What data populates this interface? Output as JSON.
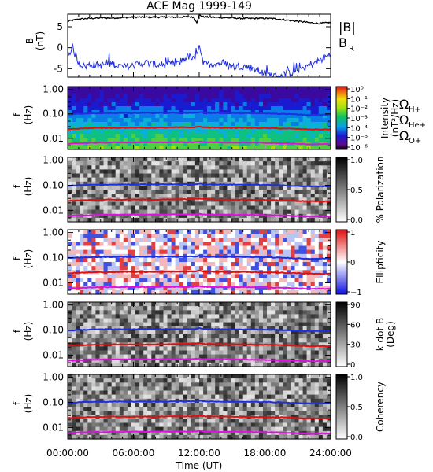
{
  "chart_data": {
    "type": "multi-panel",
    "title": "ACE Mag 1999-149",
    "xlabel": "Time (UT)",
    "x_ticks": [
      "00:00:00",
      "06:00:00",
      "12:00:00",
      "18:00:00",
      "24:00:00"
    ],
    "x_range_hours": [
      0,
      24
    ],
    "panels": [
      {
        "name": "magnetic-field",
        "ylabel": "B",
        "yunit": "(nT)",
        "y_ticks": [
          "5",
          "0",
          "-5"
        ],
        "ylim": [
          -7,
          8
        ],
        "legend": [
          {
            "label": "|B|",
            "color": "#000000"
          },
          {
            "label": "B",
            "sub": "R",
            "color": "#1f2fe0"
          }
        ],
        "series": [
          {
            "name": "|B|",
            "color": "#000000",
            "x": [
              0,
              1,
              2,
              3,
              4,
              5,
              6,
              7,
              8,
              9,
              10,
              11,
              11.5,
              11.8,
              12,
              12.3,
              13,
              14,
              15,
              16,
              17,
              18,
              19,
              20,
              21,
              22,
              23,
              24
            ],
            "y": [
              6.3,
              6.8,
              7.0,
              7.1,
              7.1,
              7.2,
              7.3,
              7.3,
              7.3,
              7.3,
              7.3,
              7.4,
              7.3,
              6.0,
              7.9,
              7.4,
              7.3,
              7.2,
              7.1,
              7.0,
              7.0,
              7.0,
              6.9,
              6.6,
              6.3,
              6.0,
              5.8,
              6.0
            ]
          },
          {
            "name": "B_R",
            "color": "#1f2fe0",
            "x": [
              0,
              0.5,
              1,
              1.5,
              2,
              3,
              4,
              5,
              6,
              7,
              8,
              9,
              10,
              11,
              11.6,
              12,
              12.4,
              13,
              14,
              15,
              16,
              17,
              18,
              19,
              20,
              21,
              22,
              23,
              24
            ],
            "y": [
              -2.0,
              -0.5,
              -3.5,
              -4.5,
              -4.0,
              -4.2,
              -3.8,
              -4.6,
              -4.3,
              -3.5,
              -4.0,
              -4.2,
              -3.8,
              -2.0,
              -3.0,
              1.0,
              -4.0,
              -3.9,
              -3.6,
              -4.5,
              -4.4,
              -5.0,
              -6.2,
              -6.8,
              -6.2,
              -5.2,
              -4.2,
              -3.0,
              -1.5
            ]
          }
        ]
      },
      {
        "name": "intensity",
        "ylabel": "f",
        "yunit": "(Hz)",
        "y_ticks": [
          "1.00",
          "0.10",
          "0.01"
        ],
        "colorbar": {
          "label": "Intensity",
          "unit": "(nT²/Hz)",
          "ticks": [
            "10⁰",
            "10⁻¹",
            "10⁻²",
            "10⁻³",
            "10⁻⁴",
            "10⁻⁵",
            "10⁻⁶"
          ]
        },
        "legend": [
          {
            "label": "Ω",
            "sub": "H+",
            "color": "#1f2fe0"
          },
          {
            "label": "Ω",
            "sub": "He+",
            "color": "#e01010"
          },
          {
            "label": "Ω",
            "sub": "O+",
            "color": "#e010e0"
          }
        ]
      },
      {
        "name": "polarization",
        "ylabel": "f",
        "yunit": "(Hz)",
        "y_ticks": [
          "1.00",
          "0.10",
          "0.01"
        ],
        "colorbar": {
          "label": "% Polarization",
          "ticks": [
            "1.0",
            "0.5",
            "0.0"
          ]
        }
      },
      {
        "name": "ellipticity",
        "ylabel": "f",
        "yunit": "(Hz)",
        "y_ticks": [
          "1.00",
          "0.10",
          "0.01"
        ],
        "colorbar": {
          "label": "Ellipticity",
          "ticks": [
            "1",
            "0",
            "−1"
          ]
        }
      },
      {
        "name": "k-dot-b",
        "ylabel": "f",
        "yunit": "(Hz)",
        "y_ticks": [
          "1.00",
          "0.10",
          "0.01"
        ],
        "colorbar": {
          "label": "k dot B",
          "unit": "(Deg)",
          "ticks": [
            "90",
            "60",
            "30",
            "0"
          ]
        }
      },
      {
        "name": "coherency",
        "ylabel": "f",
        "yunit": "(Hz)",
        "y_ticks": [
          "1.00",
          "0.10",
          "0.01"
        ],
        "colorbar": {
          "label": "Coherency",
          "ticks": [
            "1.0",
            "0.5",
            "0.0"
          ]
        }
      }
    ],
    "gyrofrequency_lines": [
      {
        "name": "H+",
        "color": "#1f2fe0",
        "x": [
          0,
          2,
          4,
          6,
          8,
          10,
          11.5,
          12,
          12.5,
          14,
          16,
          18,
          20,
          22,
          24
        ],
        "f_hz": [
          0.095,
          0.105,
          0.107,
          0.108,
          0.109,
          0.11,
          0.11,
          0.118,
          0.11,
          0.108,
          0.106,
          0.104,
          0.098,
          0.09,
          0.092
        ]
      },
      {
        "name": "He+",
        "color": "#e01010",
        "x": [
          0,
          2,
          4,
          6,
          8,
          10,
          11.5,
          12,
          12.5,
          14,
          16,
          18,
          20,
          22,
          24
        ],
        "f_hz": [
          0.024,
          0.026,
          0.027,
          0.027,
          0.027,
          0.028,
          0.028,
          0.03,
          0.028,
          0.027,
          0.027,
          0.026,
          0.025,
          0.023,
          0.023
        ]
      },
      {
        "name": "O+",
        "color": "#e010e0",
        "x": [
          0,
          2,
          4,
          6,
          8,
          10,
          11.5,
          12,
          12.5,
          14,
          16,
          18,
          20,
          22,
          24
        ],
        "f_hz": [
          0.006,
          0.0065,
          0.0067,
          0.0068,
          0.0068,
          0.0069,
          0.0069,
          0.0074,
          0.0069,
          0.0068,
          0.0067,
          0.0065,
          0.0062,
          0.0057,
          0.0058
        ]
      }
    ]
  }
}
